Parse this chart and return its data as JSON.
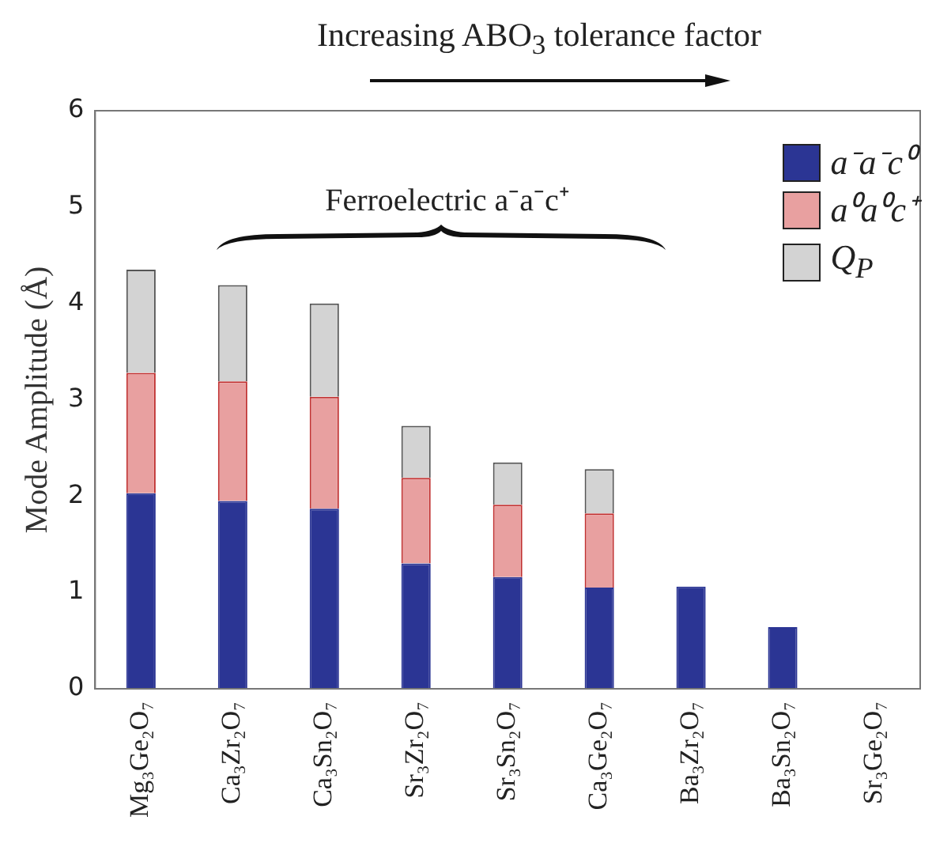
{
  "chart_data": {
    "type": "bar",
    "title": "Increasing ABO$_{3}$ tolerance factor",
    "ylabel": "Mode Amplitude (Å)",
    "annotations": [
      "Ferroelectric a⁻a⁻c⁺"
    ],
    "categories": [
      "Mg₃Ge₂O₇",
      "Ca₃Zr₂O₇",
      "Ca₃Sn₂O₇",
      "Sr₃Zr₂O₇",
      "Sr₃Sn₂O₇",
      "Ca₃Ge₂O₇",
      "Ba₃Zr₂O₇",
      "Ba₃Sn₂O₇",
      "Sr₃Ge₂O₇"
    ],
    "series": [
      {
        "name": "a⁻a⁻c⁰",
        "color": "#2b3594",
        "values": [
          2.03,
          1.95,
          1.87,
          1.3,
          1.16,
          1.05,
          1.06,
          0.64,
          0
        ]
      },
      {
        "name": "a⁰a⁰c⁺",
        "color": "#e8a0a0",
        "values": [
          1.25,
          1.24,
          1.16,
          0.89,
          0.75,
          0.77,
          0,
          0,
          0
        ]
      },
      {
        "name": "Q$_{P}$",
        "color": "#d3d3d3",
        "values": [
          1.07,
          1.0,
          0.97,
          0.54,
          0.44,
          0.46,
          0,
          0,
          0
        ]
      }
    ],
    "stacked": true,
    "ylim": [
      0,
      6
    ],
    "yticks": [
      0,
      1,
      2,
      3,
      4,
      5,
      6
    ],
    "grid": false,
    "legend": "top right"
  }
}
